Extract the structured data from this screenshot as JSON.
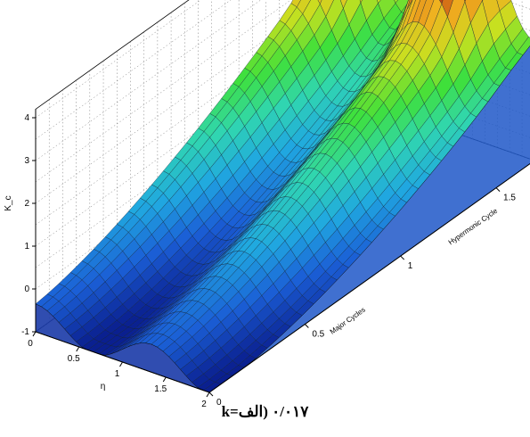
{
  "chart_data": {
    "type": "surface",
    "x_ticks": [
      "0",
      "0.5",
      "1",
      "1.5",
      "2"
    ],
    "x_label": "η",
    "y_ticks": [
      "0",
      "0.5",
      "1",
      "1.5"
    ],
    "y_label": "Major Cycles",
    "y2_label": "Hypermonic Cycle",
    "z_ticks": [
      "-1",
      "0",
      "1",
      "2",
      "3",
      "4"
    ],
    "z_label": "K_c",
    "zlim": [
      -1,
      4.2
    ],
    "grid": true,
    "colormap": [
      "#0a1f8f",
      "#1b5fd6",
      "#20a8e0",
      "#30d6b0",
      "#3fe03a",
      "#c8e020",
      "#f0b020",
      "#c04010",
      "#5a0a0a"
    ]
  },
  "caption": "k=٠/٠١٧ (الف"
}
